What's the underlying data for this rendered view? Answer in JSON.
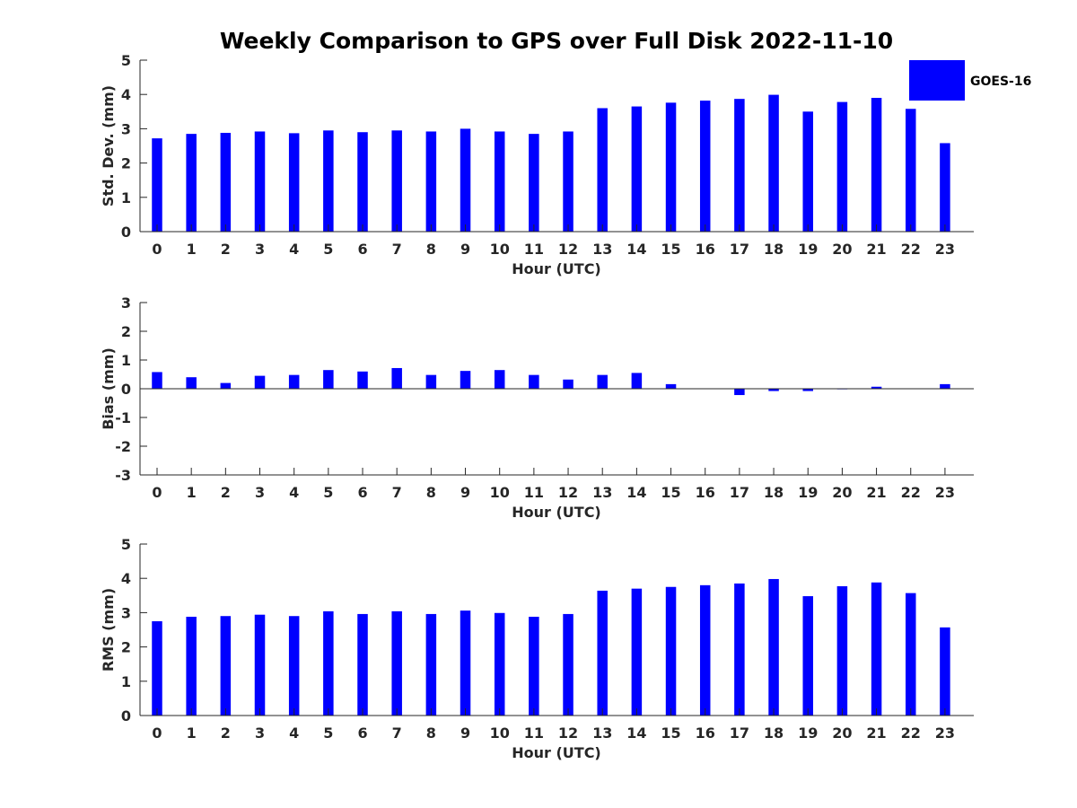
{
  "title": "Weekly Comparison to GPS over Full Disk 2022-11-10",
  "legend": {
    "label": "GOES-16",
    "color": "#0000ff"
  },
  "chart_data": [
    {
      "type": "bar",
      "name": "std-dev",
      "xlabel": "Hour (UTC)",
      "ylabel": "Std. Dev. (mm)",
      "ylim": [
        0,
        5
      ],
      "yticks": [
        0,
        1,
        2,
        3,
        4,
        5
      ],
      "categories": [
        "0",
        "1",
        "2",
        "3",
        "4",
        "5",
        "6",
        "7",
        "8",
        "9",
        "10",
        "11",
        "12",
        "13",
        "14",
        "15",
        "16",
        "17",
        "18",
        "19",
        "20",
        "21",
        "22",
        "23"
      ],
      "series": [
        {
          "name": "GOES-16",
          "values": [
            2.72,
            2.85,
            2.88,
            2.92,
            2.87,
            2.95,
            2.9,
            2.95,
            2.92,
            3.0,
            2.92,
            2.85,
            2.92,
            3.6,
            3.65,
            3.76,
            3.82,
            3.87,
            3.99,
            3.5,
            3.78,
            3.9,
            3.58,
            2.58
          ]
        }
      ]
    },
    {
      "type": "bar",
      "name": "bias",
      "xlabel": "Hour (UTC)",
      "ylabel": "Bias (mm)",
      "ylim": [
        -3,
        3
      ],
      "yticks": [
        -3,
        -2,
        -1,
        0,
        1,
        2,
        3
      ],
      "categories": [
        "0",
        "1",
        "2",
        "3",
        "4",
        "5",
        "6",
        "7",
        "8",
        "9",
        "10",
        "11",
        "12",
        "13",
        "14",
        "15",
        "16",
        "17",
        "18",
        "19",
        "20",
        "21",
        "22",
        "23"
      ],
      "series": [
        {
          "name": "GOES-16",
          "values": [
            0.58,
            0.4,
            0.2,
            0.45,
            0.48,
            0.65,
            0.6,
            0.72,
            0.48,
            0.62,
            0.65,
            0.48,
            0.32,
            0.48,
            0.55,
            0.16,
            0.0,
            -0.22,
            -0.08,
            -0.08,
            -0.02,
            0.07,
            0.0,
            0.16
          ]
        }
      ]
    },
    {
      "type": "bar",
      "name": "rms",
      "xlabel": "Hour (UTC)",
      "ylabel": "RMS (mm)",
      "ylim": [
        0,
        5
      ],
      "yticks": [
        0,
        1,
        2,
        3,
        4,
        5
      ],
      "categories": [
        "0",
        "1",
        "2",
        "3",
        "4",
        "5",
        "6",
        "7",
        "8",
        "9",
        "10",
        "11",
        "12",
        "13",
        "14",
        "15",
        "16",
        "17",
        "18",
        "19",
        "20",
        "21",
        "22",
        "23"
      ],
      "series": [
        {
          "name": "GOES-16",
          "values": [
            2.75,
            2.88,
            2.9,
            2.94,
            2.9,
            3.04,
            2.96,
            3.04,
            2.96,
            3.06,
            2.99,
            2.88,
            2.96,
            3.64,
            3.7,
            3.75,
            3.8,
            3.85,
            3.98,
            3.48,
            3.77,
            3.88,
            3.57,
            2.57
          ]
        }
      ]
    }
  ]
}
